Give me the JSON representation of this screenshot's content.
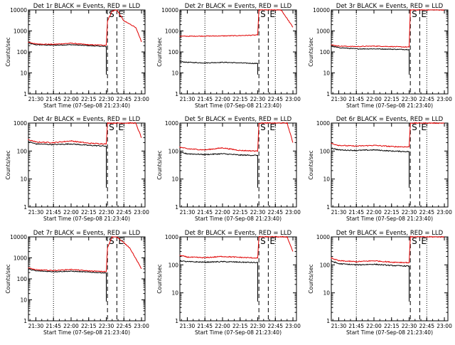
{
  "figure": {
    "background": "#ffffff"
  },
  "colors": {
    "events": "#000000",
    "lld": "#e00000",
    "axes": "#000000"
  },
  "chart_data": [
    {
      "type": "line",
      "title": "Det 1r BLACK = Events, RED = LLD",
      "xlabel": "Start Time (07-Sep-08 21:23:40)",
      "ylabel": "Counts/sec",
      "yscale": "log",
      "ylim": [
        1,
        10000
      ],
      "x_ticks": [
        "21:30",
        "21:45",
        "22:00",
        "22:15",
        "22:30",
        "22:45",
        "23:00"
      ],
      "y_ticks": [
        "1",
        "10",
        "100",
        "1000",
        "10000"
      ],
      "markers": [
        {
          "label": "S",
          "time": "22:31"
        },
        {
          "label": "E",
          "time": "22:39"
        }
      ],
      "dotted_lines": [
        "21:45",
        "22:45"
      ],
      "series": [
        {
          "name": "BLACK = Events",
          "color": "#000000",
          "x": [
            "21:23",
            "21:30",
            "21:45",
            "22:00",
            "22:15",
            "22:30"
          ],
          "y": [
            260,
            220,
            210,
            220,
            200,
            180
          ]
        },
        {
          "name": "RED = LLD",
          "color": "#e00000",
          "x": [
            "21:23",
            "21:30",
            "21:45",
            "22:00",
            "22:15",
            "22:30",
            "22:31",
            "22:35",
            "22:39",
            "22:45",
            "22:55",
            "23:00"
          ],
          "y": [
            300,
            240,
            230,
            260,
            220,
            210,
            3000,
            9000,
            10000,
            3000,
            1500,
            300
          ]
        }
      ]
    },
    {
      "type": "line",
      "title": "Det 2r BLACK = Events, RED = LLD",
      "xlabel": "Start Time (07-Sep-08 21:23:40)",
      "ylabel": "Counts/sec",
      "yscale": "log",
      "ylim": [
        1,
        10000
      ],
      "x_ticks": [
        "21:30",
        "21:45",
        "22:00",
        "22:15",
        "22:30",
        "22:45",
        "23:00"
      ],
      "y_ticks": [
        "1",
        "10",
        "100",
        "1000",
        "10000"
      ],
      "markers": [
        {
          "label": "S",
          "time": "22:31"
        },
        {
          "label": "E",
          "time": "22:39"
        }
      ],
      "dotted_lines": [
        "21:45",
        "22:45"
      ],
      "series": [
        {
          "name": "BLACK = Events",
          "color": "#000000",
          "x": [
            "21:23",
            "21:30",
            "21:45",
            "22:00",
            "22:15",
            "22:30"
          ],
          "y": [
            35,
            32,
            30,
            32,
            30,
            28
          ]
        },
        {
          "name": "RED = LLD",
          "color": "#e00000",
          "x": [
            "21:23",
            "21:30",
            "21:45",
            "22:00",
            "22:15",
            "22:30",
            "22:31",
            "22:39",
            "22:50",
            "23:00"
          ],
          "y": [
            560,
            560,
            570,
            580,
            600,
            640,
            10000,
            10000,
            10000,
            1500
          ]
        }
      ]
    },
    {
      "type": "line",
      "title": "Det 3r BLACK = Events, RED = LLD",
      "xlabel": "Start Time (07-Sep-08 21:23:40)",
      "ylabel": "Counts/sec",
      "yscale": "log",
      "ylim": [
        1,
        10000
      ],
      "x_ticks": [
        "21:30",
        "21:45",
        "22:00",
        "22:15",
        "22:30",
        "22:45",
        "23:00"
      ],
      "y_ticks": [
        "1",
        "10",
        "100",
        "1000",
        "10000"
      ],
      "markers": [
        {
          "label": "S",
          "time": "22:31"
        },
        {
          "label": "E",
          "time": "22:39"
        }
      ],
      "dotted_lines": [
        "21:45",
        "22:45"
      ],
      "series": [
        {
          "name": "BLACK = Events",
          "color": "#000000",
          "x": [
            "21:23",
            "21:30",
            "21:45",
            "22:00",
            "22:15",
            "22:30"
          ],
          "y": [
            190,
            160,
            140,
            140,
            135,
            130
          ]
        },
        {
          "name": "RED = LLD",
          "color": "#e00000",
          "x": [
            "21:23",
            "21:30",
            "21:45",
            "22:00",
            "22:15",
            "22:30",
            "22:31",
            "22:39",
            "22:50",
            "23:00"
          ],
          "y": [
            220,
            190,
            180,
            190,
            180,
            170,
            10000,
            10000,
            10000,
            10000
          ]
        }
      ]
    },
    {
      "type": "line",
      "title": "Det 4r BLACK = Events, RED = LLD",
      "xlabel": "Start Time (07-Sep-08 21:23:40)",
      "ylabel": "Counts/sec",
      "yscale": "log",
      "ylim": [
        1,
        1000
      ],
      "x_ticks": [
        "21:30",
        "21:45",
        "22:00",
        "22:15",
        "22:30",
        "22:45",
        "23:00"
      ],
      "y_ticks": [
        "1",
        "10",
        "100",
        "1000"
      ],
      "markers": [
        {
          "label": "S",
          "time": "22:31"
        },
        {
          "label": "E",
          "time": "22:39"
        }
      ],
      "dotted_lines": [
        "21:45",
        "22:45"
      ],
      "series": [
        {
          "name": "BLACK = Events",
          "color": "#000000",
          "x": [
            "21:23",
            "21:30",
            "21:45",
            "22:00",
            "22:15",
            "22:30"
          ],
          "y": [
            220,
            180,
            170,
            180,
            160,
            150
          ]
        },
        {
          "name": "RED = LLD",
          "color": "#e00000",
          "x": [
            "21:23",
            "21:30",
            "21:45",
            "22:00",
            "22:15",
            "22:30",
            "22:31",
            "22:39",
            "22:55",
            "23:00"
          ],
          "y": [
            260,
            210,
            200,
            230,
            190,
            180,
            1000,
            1000,
            1000,
            300
          ]
        }
      ]
    },
    {
      "type": "line",
      "title": "Det 5r BLACK = Events, RED = LLD",
      "xlabel": "Start Time (07-Sep-08 21:23:40)",
      "ylabel": "Counts/sec",
      "yscale": "log",
      "ylim": [
        1,
        1000
      ],
      "x_ticks": [
        "21:30",
        "21:45",
        "22:00",
        "22:15",
        "22:30",
        "22:45",
        "23:00"
      ],
      "y_ticks": [
        "1",
        "10",
        "100",
        "1000"
      ],
      "markers": [
        {
          "label": "S",
          "time": "22:31"
        },
        {
          "label": "E",
          "time": "22:39"
        }
      ],
      "dotted_lines": [
        "21:45",
        "22:45"
      ],
      "series": [
        {
          "name": "BLACK = Events",
          "color": "#000000",
          "x": [
            "21:23",
            "21:30",
            "21:45",
            "22:00",
            "22:15",
            "22:30"
          ],
          "y": [
            90,
            80,
            75,
            80,
            72,
            70
          ]
        },
        {
          "name": "RED = LLD",
          "color": "#e00000",
          "x": [
            "21:23",
            "21:30",
            "21:45",
            "22:00",
            "22:15",
            "22:30",
            "22:31",
            "22:39",
            "22:55",
            "23:00"
          ],
          "y": [
            140,
            120,
            110,
            130,
            105,
            100,
            1000,
            1000,
            1000,
            200
          ]
        }
      ]
    },
    {
      "type": "line",
      "title": "Det 6r BLACK = Events, RED = LLD",
      "xlabel": "Start Time (07-Sep-08 21:23:40)",
      "ylabel": "Counts/sec",
      "yscale": "log",
      "ylim": [
        1,
        1000
      ],
      "x_ticks": [
        "21:30",
        "21:45",
        "22:00",
        "22:15",
        "22:30",
        "22:45",
        "23:00"
      ],
      "y_ticks": [
        "1",
        "10",
        "100",
        "1000"
      ],
      "markers": [
        {
          "label": "S",
          "time": "22:31"
        },
        {
          "label": "E",
          "time": "22:39"
        }
      ],
      "dotted_lines": [
        "21:45",
        "22:45"
      ],
      "series": [
        {
          "name": "BLACK = Events",
          "color": "#000000",
          "x": [
            "21:23",
            "21:30",
            "21:45",
            "22:00",
            "22:15",
            "22:30"
          ],
          "y": [
            130,
            110,
            105,
            110,
            100,
            95
          ]
        },
        {
          "name": "RED = LLD",
          "color": "#e00000",
          "x": [
            "21:23",
            "21:30",
            "21:45",
            "22:00",
            "22:15",
            "22:30",
            "22:31",
            "22:39",
            "22:55",
            "23:00"
          ],
          "y": [
            190,
            160,
            150,
            160,
            145,
            140,
            1000,
            1000,
            1000,
            1000
          ]
        }
      ]
    },
    {
      "type": "line",
      "title": "Det 7r BLACK = Events, RED = LLD",
      "xlabel": "Start Time (07-Sep-08 21:23:40)",
      "ylabel": "Counts/sec",
      "yscale": "log",
      "ylim": [
        1,
        10000
      ],
      "x_ticks": [
        "21:30",
        "21:45",
        "22:00",
        "22:15",
        "22:30",
        "22:45",
        "23:00"
      ],
      "y_ticks": [
        "1",
        "10",
        "100",
        "1000",
        "10000"
      ],
      "markers": [
        {
          "label": "S",
          "time": "22:31"
        },
        {
          "label": "E",
          "time": "22:39"
        }
      ],
      "dotted_lines": [
        "21:45",
        "22:45"
      ],
      "series": [
        {
          "name": "BLACK = Events",
          "color": "#000000",
          "x": [
            "21:23",
            "21:30",
            "21:45",
            "22:00",
            "22:15",
            "22:30"
          ],
          "y": [
            300,
            240,
            220,
            230,
            210,
            190
          ]
        },
        {
          "name": "RED = LLD",
          "color": "#e00000",
          "x": [
            "21:23",
            "21:30",
            "21:45",
            "22:00",
            "22:15",
            "22:30",
            "22:31",
            "22:35",
            "22:39",
            "22:50",
            "23:00"
          ],
          "y": [
            340,
            270,
            250,
            280,
            240,
            220,
            3000,
            10000,
            10000,
            3000,
            300
          ]
        }
      ]
    },
    {
      "type": "line",
      "title": "Det 8r BLACK = Events, RED = LLD",
      "xlabel": "Start Time (07-Sep-08 21:23:40)",
      "ylabel": "Counts/sec",
      "yscale": "log",
      "ylim": [
        1,
        1000
      ],
      "x_ticks": [
        "21:30",
        "21:45",
        "22:00",
        "22:15",
        "22:30",
        "22:45",
        "23:00"
      ],
      "y_ticks": [
        "1",
        "10",
        "100",
        "1000"
      ],
      "markers": [
        {
          "label": "S",
          "time": "22:31"
        },
        {
          "label": "E",
          "time": "22:39"
        }
      ],
      "dotted_lines": [
        "21:45",
        "22:45"
      ],
      "series": [
        {
          "name": "BLACK = Events",
          "color": "#000000",
          "x": [
            "21:23",
            "21:30",
            "21:45",
            "22:00",
            "22:15",
            "22:30"
          ],
          "y": [
            140,
            130,
            125,
            130,
            125,
            120
          ]
        },
        {
          "name": "RED = LLD",
          "color": "#e00000",
          "x": [
            "21:23",
            "21:30",
            "21:45",
            "22:00",
            "22:15",
            "22:30",
            "22:31",
            "22:39",
            "22:55",
            "23:00"
          ],
          "y": [
            220,
            190,
            180,
            200,
            185,
            175,
            1000,
            1000,
            1000,
            300
          ]
        }
      ]
    },
    {
      "type": "line",
      "title": "Det 9r BLACK = Events, RED = LLD",
      "xlabel": "Start Time (07-Sep-08 21:23:40)",
      "ylabel": "Counts/sec",
      "yscale": "log",
      "ylim": [
        1,
        1000
      ],
      "x_ticks": [
        "21:30",
        "21:45",
        "22:00",
        "22:15",
        "22:30",
        "22:45",
        "23:00"
      ],
      "y_ticks": [
        "1",
        "10",
        "100",
        "1000"
      ],
      "markers": [
        {
          "label": "S",
          "time": "22:31"
        },
        {
          "label": "E",
          "time": "22:39"
        }
      ],
      "dotted_lines": [
        "21:45",
        "22:45"
      ],
      "series": [
        {
          "name": "BLACK = Events",
          "color": "#000000",
          "x": [
            "21:23",
            "21:30",
            "21:45",
            "22:00",
            "22:15",
            "22:30"
          ],
          "y": [
            140,
            110,
            100,
            105,
            95,
            90
          ]
        },
        {
          "name": "RED = LLD",
          "color": "#e00000",
          "x": [
            "21:23",
            "21:30",
            "21:45",
            "22:00",
            "22:15",
            "22:30",
            "22:31",
            "22:39",
            "22:55",
            "23:00"
          ],
          "y": [
            180,
            140,
            130,
            140,
            125,
            120,
            1000,
            1000,
            1000,
            1000
          ]
        }
      ]
    }
  ]
}
